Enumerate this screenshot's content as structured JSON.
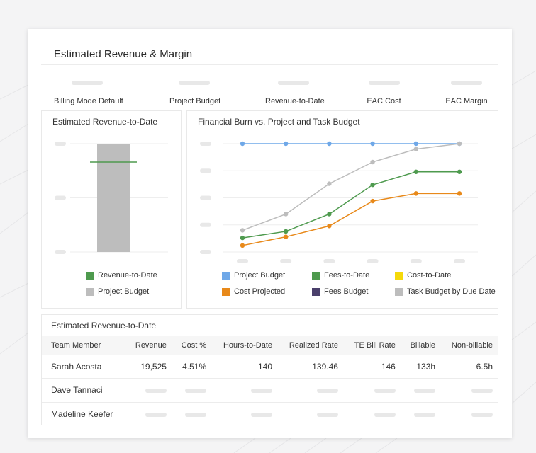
{
  "page": {
    "title": "Estimated Revenue & Margin"
  },
  "metrics": [
    {
      "label": "Billing Mode Default"
    },
    {
      "label": "Project Budget"
    },
    {
      "label": "Revenue-to-Date"
    },
    {
      "label": "EAC Cost"
    },
    {
      "label": "EAC Margin"
    }
  ],
  "revenue_chart": {
    "title": "Estimated Revenue-to-Date",
    "legend": [
      {
        "label": "Revenue-to-Date",
        "color": "#4e9a4e"
      },
      {
        "label": "Project Budget",
        "color": "#bdbdbd"
      }
    ]
  },
  "burn_chart": {
    "title": "Financial Burn vs. Project and Task Budget",
    "legend": [
      {
        "label": "Project Budget",
        "color": "#6fa8e8"
      },
      {
        "label": "Fees-to-Date",
        "color": "#4e9a4e"
      },
      {
        "label": "Cost-to-Date",
        "color": "#f5d90a"
      },
      {
        "label": "Cost Projected",
        "color": "#e8891a"
      },
      {
        "label": "Fees Budget",
        "color": "#4a3f6b"
      },
      {
        "label": "Task Budget by Due Date",
        "color": "#bdbdbd"
      }
    ]
  },
  "chart_data": [
    {
      "type": "bar",
      "title": "Estimated Revenue-to-Date",
      "categories": [
        ""
      ],
      "series": [
        {
          "name": "Project Budget",
          "values": [
            1.0
          ],
          "color": "#bdbdbd"
        },
        {
          "name": "Revenue-to-Date",
          "values": [
            0.83
          ],
          "color": "#4e9a4e",
          "mark": "line"
        }
      ],
      "ylim": [
        0,
        1
      ],
      "grid": true
    },
    {
      "type": "line",
      "title": "Financial Burn vs. Project and Task Budget",
      "x": [
        1,
        2,
        3,
        4,
        5,
        6
      ],
      "ylim": [
        0,
        1
      ],
      "grid": true,
      "series": [
        {
          "name": "Project Budget",
          "color": "#6fa8e8",
          "values": [
            1.0,
            1.0,
            1.0,
            1.0,
            1.0,
            1.0
          ]
        },
        {
          "name": "Task Budget by Due Date",
          "color": "#bdbdbd",
          "values": [
            0.2,
            0.35,
            0.63,
            0.83,
            0.95,
            1.0
          ]
        },
        {
          "name": "Fees-to-Date",
          "color": "#4e9a4e",
          "values": [
            0.13,
            0.19,
            0.35,
            0.62,
            0.74,
            0.74
          ]
        },
        {
          "name": "Cost Projected",
          "color": "#e8891a",
          "values": [
            0.06,
            0.14,
            0.24,
            0.47,
            0.54,
            0.54
          ]
        }
      ]
    }
  ],
  "table": {
    "title": "Estimated Revenue-to-Date",
    "columns": [
      "Team Member",
      "Revenue",
      "Cost %",
      "Hours-to-Date",
      "Realized Rate",
      "TE Bill Rate",
      "Billable",
      "Non-billable"
    ],
    "rows": [
      {
        "name": "Sarah Acosta",
        "revenue": "19,525",
        "cost_pct": "4.51%",
        "hours": "140",
        "realized_rate": "139.46",
        "te_bill_rate": "146",
        "billable": "133h",
        "non_billable": "6.5h"
      },
      {
        "name": "Dave Tannaci"
      },
      {
        "name": "Madeline Keefer"
      }
    ]
  }
}
